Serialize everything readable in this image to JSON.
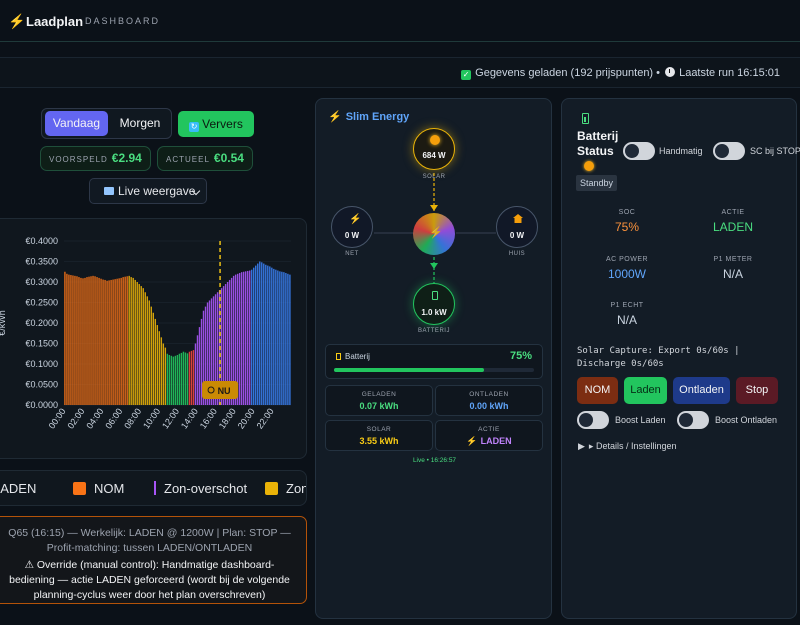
{
  "header": {
    "brand": "Laadplan",
    "subtitle": "DASHBOARD"
  },
  "statusbar": {
    "loaded_text": "Gegevens geladen (192 prijspunten) •",
    "last_run_text": "Laatste run 16:15:01"
  },
  "day_toggle": {
    "today": "Vandaag",
    "tomorrow": "Morgen",
    "active": "Vandaag"
  },
  "refresh_label": "Ververs",
  "forecast": {
    "label": "VOORSPELD",
    "value": "€2.94"
  },
  "actual": {
    "label": "ACTUEEL",
    "value": "€0.54"
  },
  "view_select": {
    "value": "Live weergave"
  },
  "now_marker": "NU",
  "colors": {
    "nom": "#f97316",
    "surplus": "#a855f7",
    "solar": "#eab308",
    "laden": "#3b82f6",
    "green": "#22c55e",
    "red_bar": "#ef4444"
  },
  "chart_data": {
    "type": "bar",
    "ylabel": "€/kWh",
    "ylim": [
      0,
      0.4
    ],
    "yticks": [
      "€0.0000",
      "€0.0500",
      "€0.1000",
      "€0.1500",
      "€0.2000",
      "€0.2500",
      "€0.3000",
      "€0.3500",
      "€0.4000"
    ],
    "xticks": [
      "00:00",
      "02:00",
      "04:00",
      "06:00",
      "08:00",
      "10:00",
      "12:00",
      "14:00",
      "16:00",
      "18:00",
      "20:00",
      "22:00"
    ],
    "now_hour": 16.5,
    "groups": [
      {
        "mode": "nom",
        "values": [
          0.325,
          0.32,
          0.318,
          0.317,
          0.316,
          0.315,
          0.314,
          0.312,
          0.31,
          0.309,
          0.31,
          0.312,
          0.313,
          0.314,
          0.315,
          0.314,
          0.312,
          0.31,
          0.308,
          0.306,
          0.305,
          0.303,
          0.304,
          0.305,
          0.306,
          0.307,
          0.308,
          0.309,
          0.31,
          0.312,
          0.313,
          0.314
        ]
      },
      {
        "mode": "solar",
        "values": [
          0.315,
          0.312,
          0.31,
          0.305,
          0.3,
          0.295,
          0.29,
          0.285,
          0.275,
          0.265,
          0.255,
          0.24,
          0.225,
          0.21,
          0.195,
          0.18,
          0.165,
          0.15,
          0.14
        ]
      },
      {
        "mode": "green",
        "values": [
          0.125,
          0.122,
          0.12,
          0.118,
          0.12,
          0.122,
          0.125,
          0.127,
          0.13,
          0.128,
          0.126
        ]
      },
      {
        "mode": "red",
        "values": [
          0.13,
          0.132,
          0.134
        ]
      },
      {
        "mode": "surplus",
        "values": [
          0.15,
          0.17,
          0.19,
          0.21,
          0.23,
          0.24,
          0.25,
          0.255,
          0.26,
          0.265,
          0.27,
          0.275,
          0.28,
          0.285,
          0.29,
          0.295,
          0.3,
          0.305,
          0.31,
          0.315,
          0.318,
          0.32,
          0.322,
          0.324,
          0.325,
          0.326,
          0.327,
          0.328
        ]
      },
      {
        "mode": "laden",
        "values": [
          0.33,
          0.335,
          0.34,
          0.345,
          0.35,
          0.348,
          0.345,
          0.342,
          0.34,
          0.338,
          0.335,
          0.332,
          0.33,
          0.328,
          0.326,
          0.325,
          0.324,
          0.322,
          0.32,
          0.318
        ]
      }
    ]
  },
  "legend": [
    {
      "label": "LADEN",
      "type": "none"
    },
    {
      "label": "NOM",
      "type": "box",
      "color": "#f97316"
    },
    {
      "label": "Zon-overschot",
      "type": "line",
      "color": "#a855f7"
    },
    {
      "label": "Zon",
      "type": "box",
      "color": "#eab308"
    }
  ],
  "plan": {
    "line1": "Q65 (16:15) — Werkelijk: LADEN @ 1200W | Plan: STOP — Profit-matching: tussen LADEN/ONTLADEN",
    "line2": "⚠ Override (manual control): Handmatige dashboard-bediening — actie LADEN geforceerd (wordt bij de volgende planning-cyclus weer door het plan overschreven)"
  },
  "energy": {
    "title": "Slim Energy",
    "solar": {
      "value": "684 W",
      "label": "SOLAR"
    },
    "net": {
      "value": "0 W",
      "label": "NET"
    },
    "huis": {
      "value": "0 W",
      "label": "HUIS"
    },
    "batterij": {
      "value": "1.0 kW",
      "label": "BATTERIJ"
    },
    "battery_bar": {
      "label": "Batterij",
      "percent": "75%",
      "fill": 0.75
    },
    "stats": [
      {
        "key": "GELADEN",
        "value": "0.07 kWh",
        "color": "#4ade80"
      },
      {
        "key": "ONTLADEN",
        "value": "0.00 kWh",
        "color": "#60a5fa"
      },
      {
        "key": "SOLAR",
        "value": "3.55 kWh",
        "color": "#facc15"
      },
      {
        "key": "ACTIE",
        "value": "LADEN",
        "color": "#c084fc"
      }
    ],
    "live": "Live • 16:26:57"
  },
  "battery": {
    "title": "Batterij Status",
    "toggle_manual": "Handmatig",
    "toggle_sc": "SC bij STOP",
    "state": "Standby",
    "soc": {
      "key": "SOC",
      "value": "75%"
    },
    "actie": {
      "key": "ACTIE",
      "value": "LADEN"
    },
    "ac_power": {
      "key": "AC POWER",
      "value": "1000W"
    },
    "p1_meter": {
      "key": "P1 METER",
      "value": "N/A"
    },
    "p1_echt": {
      "key": "P1 ECHT",
      "value": "N/A"
    },
    "solar_capture": "Solar Capture: Export 0s/60s | Discharge 0s/60s",
    "buttons": {
      "nom": "NOM",
      "laden": "Laden",
      "ontladen": "Ontladen",
      "stop": "Stop"
    },
    "boost_laden": "Boost Laden",
    "boost_ontladen": "Boost Ontladen",
    "details": "▸ Details / Instellingen"
  }
}
